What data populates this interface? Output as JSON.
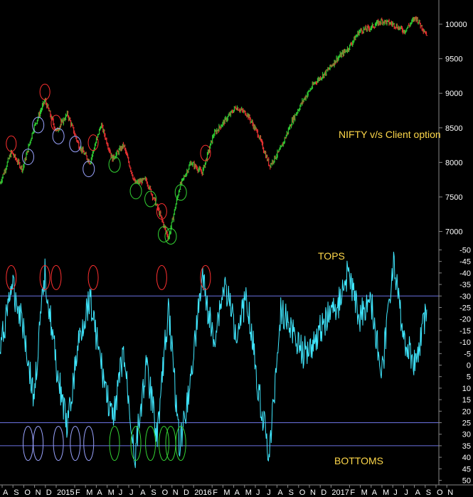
{
  "chart_data": [
    {
      "type": "line",
      "panel": "price",
      "annotation": "NIFTY v/s Client option",
      "y_ticks": [
        7000,
        7500,
        8000,
        8500,
        9000,
        9500,
        10000
      ],
      "ylim": [
        6800,
        10350
      ],
      "x_range": [
        0,
        38
      ],
      "series": [
        {
          "x": [
            0,
            1,
            2,
            3,
            4,
            5,
            6,
            7,
            8,
            9,
            10,
            11,
            12,
            13,
            14,
            15,
            16,
            17,
            18,
            19,
            20,
            21,
            22,
            23,
            24,
            25,
            26,
            27,
            28,
            29,
            30,
            31,
            32,
            33,
            34,
            35,
            36,
            37,
            38
          ],
          "values": [
            7700,
            8150,
            7900,
            8500,
            8900,
            8450,
            8700,
            8250,
            8000,
            8550,
            8050,
            8250,
            7700,
            7750,
            7350,
            6900,
            7650,
            8000,
            7850,
            8400,
            8600,
            8800,
            8700,
            8400,
            7950,
            8200,
            8600,
            8900,
            9150,
            9300,
            9500,
            9650,
            9900,
            9950,
            10050,
            10000,
            9900,
            10100,
            9850
          ]
        }
      ],
      "tops_marked_x": [
        1,
        4,
        5,
        8.3,
        14.4,
        18.3
      ],
      "bottoms_marked_x": [
        2.5,
        3.4,
        5.2,
        6.7,
        7.9,
        10.2,
        12.1,
        13.4,
        14.6,
        15.2,
        16.1
      ]
    },
    {
      "type": "line",
      "panel": "oscillator",
      "axis_direction": "inverted",
      "y_ticks": [
        -50,
        -45,
        -40,
        -35,
        -30,
        -25,
        -20,
        -15,
        -10,
        -5,
        0,
        5,
        10,
        15,
        20,
        25,
        30,
        35,
        40,
        45,
        50
      ],
      "ylim": [
        -52,
        52
      ],
      "reference_lines": [
        -30,
        25,
        35
      ],
      "x_range": [
        0,
        38
      ],
      "series": [
        {
          "x": [
            0,
            1,
            2,
            3,
            4,
            5,
            6,
            7,
            8,
            9,
            10,
            11,
            12,
            13,
            14,
            15,
            16,
            17,
            18,
            19,
            20,
            21,
            22,
            23,
            24,
            25,
            26,
            27,
            28,
            29,
            30,
            31,
            32,
            33,
            34,
            35,
            36,
            37,
            38
          ],
          "values": [
            -5,
            -35,
            -20,
            15,
            -40,
            0,
            28,
            -10,
            -30,
            0,
            25,
            -5,
            40,
            0,
            30,
            -25,
            35,
            5,
            -38,
            -10,
            -35,
            -15,
            -30,
            10,
            40,
            -25,
            -15,
            -5,
            -10,
            -20,
            -25,
            -40,
            -20,
            -30,
            5,
            -45,
            -10,
            0,
            -25
          ]
        }
      ],
      "tops_label": "TOPS",
      "bottoms_label": "BOTTOMS"
    }
  ],
  "x_axis": {
    "labels": [
      "A",
      "S",
      "O",
      "N",
      "D",
      "2015",
      "F",
      "M",
      "A",
      "M",
      "J",
      "J",
      "A",
      "S",
      "O",
      "N",
      "D",
      "2016",
      "F",
      "M",
      "A",
      "M",
      "J",
      "J",
      "A",
      "S",
      "O",
      "N",
      "D",
      "2017",
      "F",
      "M",
      "A",
      "M",
      "J",
      "J",
      "A",
      "S",
      "O",
      "N"
    ],
    "year_labels": [
      "2015",
      "2016",
      "2017"
    ]
  },
  "colors": {
    "background": "#000000",
    "price_up": "#2ec832",
    "price_down": "#e23030",
    "oscillator": "#40e8ff",
    "reference_line": "#6b72e0",
    "top_marker": "#ff3030",
    "bottom_marker_price": "#9aa4ff",
    "bottom_marker_green": "#34d534",
    "annotation": "#ffd84a",
    "axis_text": "#ffffff"
  }
}
